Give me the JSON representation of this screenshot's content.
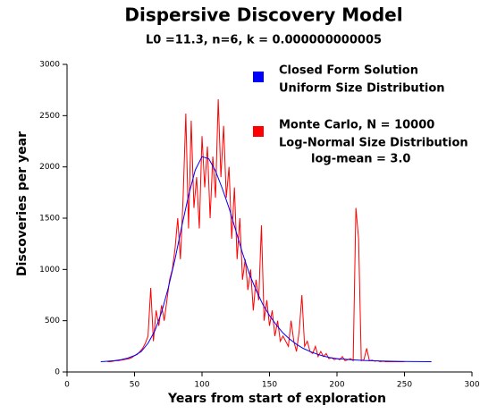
{
  "chart_data": {
    "type": "line",
    "title": "Dispersive Discovery Model",
    "subtitle": "L0 =11.3, n=6, k = 0.000000000005",
    "xlabel": "Years from start of exploration",
    "ylabel": "Discoveries per year",
    "xlim": [
      0,
      300
    ],
    "xticks": [
      0,
      50,
      100,
      150,
      200,
      250,
      300
    ],
    "ylim": [
      0,
      3000
    ],
    "yticks": [
      0,
      500,
      1000,
      1500,
      2000,
      2500,
      3000
    ],
    "series": [
      {
        "name": "Closed Form Solution",
        "legend_lines": [
          "Uniform Size Distribution"
        ],
        "color": "#0000ff",
        "x": [
          25,
          30,
          35,
          40,
          45,
          50,
          55,
          60,
          65,
          70,
          75,
          80,
          85,
          90,
          95,
          100,
          105,
          110,
          115,
          120,
          125,
          130,
          135,
          140,
          145,
          150,
          155,
          160,
          165,
          170,
          175,
          180,
          185,
          190,
          195,
          200,
          210,
          220,
          230,
          240,
          250,
          260,
          270
        ],
        "values": [
          100,
          105,
          110,
          120,
          135,
          160,
          200,
          280,
          400,
          580,
          820,
          1100,
          1420,
          1720,
          1970,
          2100,
          2080,
          1960,
          1790,
          1600,
          1380,
          1160,
          960,
          800,
          660,
          550,
          460,
          380,
          320,
          270,
          230,
          200,
          175,
          155,
          140,
          130,
          120,
          112,
          108,
          105,
          102,
          101,
          100
        ]
      },
      {
        "name": "Monte Carlo, N = 10000",
        "legend_lines": [
          "Log-Normal Size Distribution",
          "log-mean = 3.0"
        ],
        "color": "#ff0000",
        "x": [
          30,
          32,
          34,
          36,
          38,
          40,
          42,
          44,
          46,
          48,
          50,
          52,
          54,
          56,
          58,
          60,
          62,
          64,
          66,
          68,
          70,
          72,
          74,
          76,
          78,
          80,
          82,
          84,
          86,
          88,
          90,
          92,
          94,
          96,
          98,
          100,
          102,
          104,
          106,
          108,
          110,
          112,
          114,
          116,
          118,
          120,
          122,
          124,
          126,
          128,
          130,
          132,
          134,
          136,
          138,
          140,
          142,
          144,
          146,
          148,
          150,
          152,
          154,
          156,
          158,
          160,
          162,
          164,
          166,
          168,
          170,
          172,
          174,
          176,
          178,
          180,
          182,
          184,
          186,
          188,
          190,
          192,
          194,
          196,
          198,
          200,
          202,
          204,
          206,
          208,
          210,
          212,
          214,
          216,
          218,
          220,
          222,
          224,
          226,
          228,
          230,
          232,
          234,
          236,
          238,
          240,
          242,
          244,
          246,
          248,
          250
        ],
        "values": [
          100,
          100,
          105,
          110,
          110,
          115,
          120,
          125,
          130,
          140,
          160,
          170,
          200,
          230,
          280,
          350,
          820,
          300,
          600,
          450,
          650,
          500,
          700,
          900,
          1000,
          1200,
          1500,
          1100,
          1700,
          2520,
          1400,
          2450,
          1600,
          1900,
          1400,
          2300,
          1800,
          2200,
          1500,
          2100,
          1700,
          2660,
          1900,
          2400,
          1700,
          2000,
          1300,
          1800,
          1100,
          1500,
          900,
          1100,
          800,
          1000,
          600,
          900,
          700,
          1430,
          500,
          700,
          450,
          600,
          350,
          500,
          300,
          350,
          300,
          250,
          500,
          300,
          200,
          400,
          750,
          250,
          300,
          200,
          180,
          250,
          150,
          200,
          150,
          180,
          130,
          140,
          120,
          130,
          120,
          150,
          110,
          120,
          130,
          110,
          1600,
          1300,
          110,
          120,
          230,
          110,
          115,
          105,
          110,
          100,
          105,
          100,
          100,
          100,
          100,
          100,
          100,
          100,
          100
        ]
      }
    ]
  }
}
